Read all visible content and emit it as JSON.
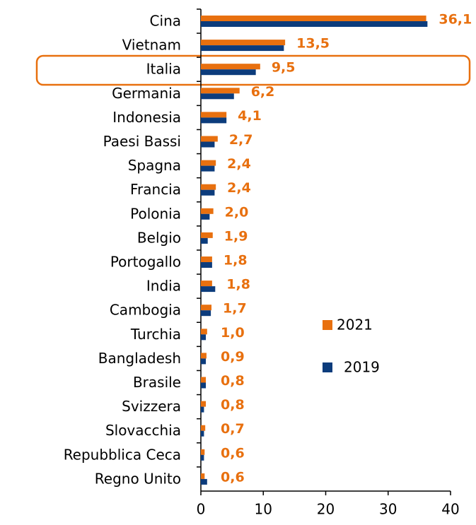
{
  "chart_data": {
    "type": "bar",
    "orientation": "horizontal",
    "categories": [
      "Cina",
      "Vietnam",
      "Italia",
      "Germania",
      "Indonesia",
      "Paesi Bassi",
      "Spagna",
      "Francia",
      "Polonia",
      "Belgio",
      "Portogallo",
      "India",
      "Cambogia",
      "Turchia",
      "Bangladesh",
      "Brasile",
      "Svizzera",
      "Slovacchia",
      "Repubblica Ceca",
      "Regno Unito"
    ],
    "series": [
      {
        "name": "2021",
        "color": "#e8700f",
        "values": [
          36.1,
          13.5,
          9.5,
          6.2,
          4.1,
          2.7,
          2.4,
          2.4,
          2.0,
          1.9,
          1.8,
          1.8,
          1.7,
          1.0,
          0.9,
          0.8,
          0.8,
          0.7,
          0.6,
          0.6
        ],
        "value_labels": [
          "36,1",
          "13,5",
          "9,5",
          "6,2",
          "4,1",
          "2,7",
          "2,4",
          "2,4",
          "2,0",
          "1,9",
          "1,8",
          "1,8",
          "1,7",
          "1,0",
          "0,9",
          "0,8",
          "0,8",
          "0,7",
          "0,6",
          "0,6"
        ]
      },
      {
        "name": "2019",
        "color": "#0c3c7c",
        "values": [
          36.3,
          13.3,
          8.8,
          5.3,
          4.1,
          2.2,
          2.2,
          2.2,
          1.4,
          1.1,
          1.8,
          2.3,
          1.6,
          0.8,
          0.8,
          0.8,
          0.5,
          0.5,
          0.5,
          1.0
        ]
      }
    ],
    "xlim": [
      0,
      40
    ],
    "xticks": [
      0,
      10,
      20,
      30,
      40
    ],
    "grid": false
  }
}
